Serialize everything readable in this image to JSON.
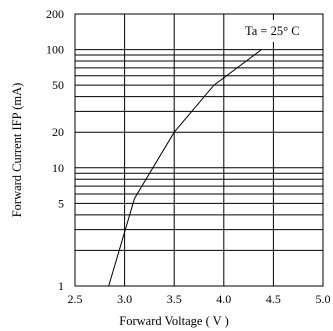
{
  "chart_data": {
    "type": "line",
    "xlabel": "Forward Voltage ( V )",
    "ylabel": "Forward Current IFP (mA)",
    "xlim": [
      2.5,
      5.0
    ],
    "ylim": [
      1,
      200
    ],
    "y_scale": "log",
    "grid": true,
    "x_ticks": [
      "2.5",
      "3.0",
      "3.5",
      "4.0",
      "4.5",
      "5.0"
    ],
    "y_ticks": [
      "1",
      "5",
      "10",
      "20",
      "50",
      "100",
      "200"
    ],
    "annotation": "Ta = 25° C",
    "series": [
      {
        "x": [
          2.84,
          3.1,
          3.5,
          3.9,
          4.38
        ],
        "y": [
          1,
          5.5,
          20,
          50,
          100
        ]
      }
    ]
  }
}
